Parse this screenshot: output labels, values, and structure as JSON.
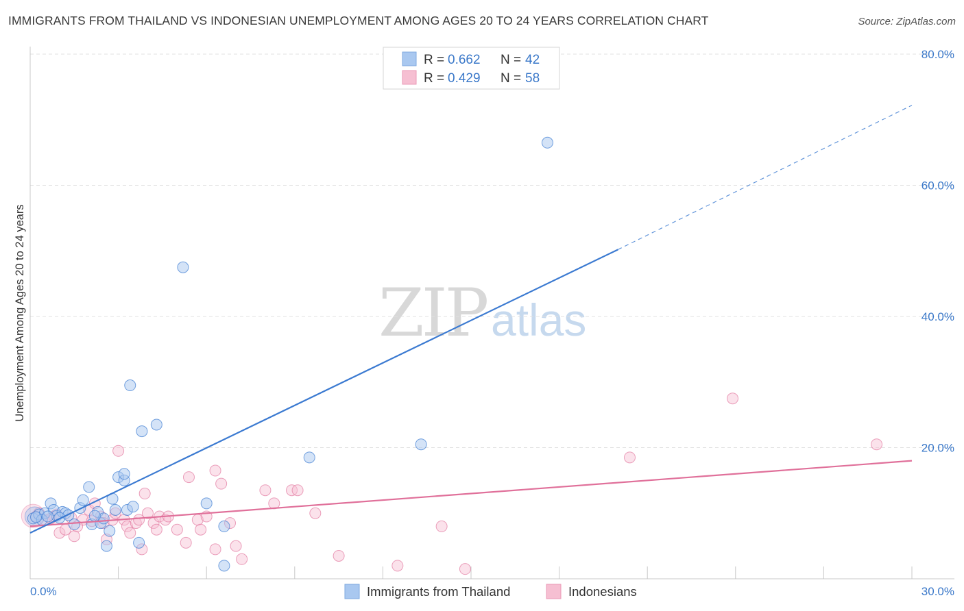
{
  "title": "IMMIGRANTS FROM THAILAND VS INDONESIAN UNEMPLOYMENT AMONG AGES 20 TO 24 YEARS CORRELATION CHART",
  "source": "Source: ZipAtlas.com",
  "watermark": {
    "zip": "ZIP",
    "atlas": "atlas"
  },
  "colors": {
    "blue": "#3b7ad1",
    "blue_fill": "#a9c8f0",
    "pink": "#e0709a",
    "pink_fill": "#f6bfd2",
    "grid": "#e0e0e0",
    "tick_text": "#3a78c9"
  },
  "legend": {
    "rows": [
      {
        "r_label": "R = ",
        "r_value": "0.662",
        "n_label": "N = ",
        "n_value": "42"
      },
      {
        "r_label": "R = ",
        "r_value": "0.429",
        "n_label": "N = ",
        "n_value": "58"
      }
    ]
  },
  "bottom_legend": [
    "Immigrants from Thailand",
    "Indonesians"
  ],
  "chart_data": {
    "type": "scatter",
    "title": "IMMIGRANTS FROM THAILAND VS INDONESIAN UNEMPLOYMENT AMONG AGES 20 TO 24 YEARS CORRELATION CHART",
    "xlabel": "",
    "ylabel": "Unemployment Among Ages 20 to 24 years",
    "xlim": [
      0,
      30
    ],
    "ylim": [
      0,
      80
    ],
    "x_tick_labels": [
      "0.0%",
      "30.0%"
    ],
    "y_ticks": [
      20,
      40,
      60,
      80
    ],
    "y_tick_labels": [
      "20.0%",
      "40.0%",
      "60.0%",
      "80.0%"
    ],
    "series": [
      {
        "name": "Immigrants from Thailand",
        "r": 0.662,
        "n": 42,
        "trend": {
          "x0": 0,
          "y0": 7.0,
          "x1": 20.0,
          "y1": 50.2,
          "dashed_to_x": 30.0,
          "dashed_to_y": 72.2
        },
        "points": [
          [
            0.1,
            9.2
          ],
          [
            0.3,
            9.8
          ],
          [
            0.5,
            10.0
          ],
          [
            0.7,
            11.5
          ],
          [
            0.8,
            10.5
          ],
          [
            0.9,
            9.6
          ],
          [
            1.1,
            10.2
          ],
          [
            1.2,
            10.0
          ],
          [
            1.3,
            9.7
          ],
          [
            1.5,
            8.3
          ],
          [
            1.7,
            10.8
          ],
          [
            1.8,
            12.0
          ],
          [
            2.0,
            14.0
          ],
          [
            2.1,
            8.3
          ],
          [
            2.3,
            10.2
          ],
          [
            2.4,
            8.5
          ],
          [
            2.5,
            9.2
          ],
          [
            2.6,
            5.0
          ],
          [
            2.7,
            7.3
          ],
          [
            2.8,
            12.2
          ],
          [
            2.9,
            10.5
          ],
          [
            3.0,
            15.5
          ],
          [
            3.2,
            15.0
          ],
          [
            3.2,
            16.0
          ],
          [
            3.3,
            10.5
          ],
          [
            3.4,
            29.5
          ],
          [
            3.5,
            11.0
          ],
          [
            3.7,
            5.5
          ],
          [
            3.8,
            22.5
          ],
          [
            4.3,
            23.5
          ],
          [
            5.2,
            47.5
          ],
          [
            6.0,
            11.5
          ],
          [
            6.6,
            8.0
          ],
          [
            6.6,
            2.0
          ],
          [
            9.5,
            18.5
          ],
          [
            13.3,
            20.5
          ],
          [
            17.6,
            66.5
          ],
          [
            1.0,
            9.3
          ],
          [
            0.4,
            9.0
          ],
          [
            2.2,
            9.6
          ],
          [
            0.6,
            9.5
          ],
          [
            0.2,
            9.4
          ]
        ]
      },
      {
        "name": "Indonesians",
        "r": 0.429,
        "n": 58,
        "trend": {
          "x0": 0,
          "y0": 8.0,
          "x1": 30.0,
          "y1": 18.0
        },
        "points": [
          [
            0.2,
            9.5
          ],
          [
            0.5,
            9.0
          ],
          [
            0.8,
            9.5
          ],
          [
            1.0,
            7.0
          ],
          [
            1.2,
            7.5
          ],
          [
            1.5,
            6.5
          ],
          [
            1.8,
            9.0
          ],
          [
            2.0,
            10.5
          ],
          [
            2.2,
            11.5
          ],
          [
            2.4,
            9.5
          ],
          [
            2.5,
            8.5
          ],
          [
            2.6,
            6.0
          ],
          [
            2.8,
            9.0
          ],
          [
            2.9,
            10.0
          ],
          [
            3.0,
            19.5
          ],
          [
            3.2,
            9.0
          ],
          [
            3.3,
            8.0
          ],
          [
            3.4,
            7.0
          ],
          [
            3.6,
            8.5
          ],
          [
            3.7,
            9.0
          ],
          [
            3.8,
            4.5
          ],
          [
            3.9,
            13.0
          ],
          [
            4.0,
            10.0
          ],
          [
            4.2,
            8.5
          ],
          [
            4.3,
            7.5
          ],
          [
            4.4,
            9.5
          ],
          [
            4.6,
            9.0
          ],
          [
            4.7,
            9.5
          ],
          [
            5.0,
            7.5
          ],
          [
            5.3,
            5.5
          ],
          [
            5.4,
            15.5
          ],
          [
            5.7,
            9.0
          ],
          [
            5.8,
            7.5
          ],
          [
            6.0,
            9.5
          ],
          [
            6.3,
            4.5
          ],
          [
            6.3,
            16.5
          ],
          [
            6.5,
            14.5
          ],
          [
            6.8,
            8.5
          ],
          [
            7.0,
            5.0
          ],
          [
            7.2,
            3.0
          ],
          [
            8.0,
            13.5
          ],
          [
            8.3,
            11.5
          ],
          [
            8.9,
            13.5
          ],
          [
            9.1,
            13.5
          ],
          [
            9.7,
            10.0
          ],
          [
            10.5,
            3.5
          ],
          [
            12.5,
            2.0
          ],
          [
            14.0,
            8.0
          ],
          [
            14.8,
            1.5
          ],
          [
            20.4,
            18.5
          ],
          [
            23.9,
            27.5
          ],
          [
            28.8,
            20.5
          ],
          [
            0.9,
            9.8
          ],
          [
            1.4,
            9.3
          ],
          [
            2.1,
            8.8
          ],
          [
            0.3,
            10.0
          ],
          [
            1.6,
            8.0
          ],
          [
            0.7,
            9.2
          ]
        ]
      }
    ]
  }
}
